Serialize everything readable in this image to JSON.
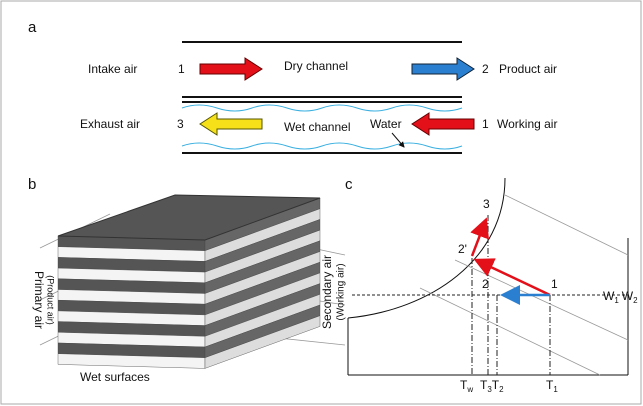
{
  "panel_a": {
    "label": "a",
    "intake": "Intake air",
    "intake_num": "1",
    "dry": "Dry channel",
    "product_num": "2",
    "product": "Product air",
    "exhaust": "Exhaust air",
    "exhaust_num": "3",
    "wet": "Wet channel",
    "water": "Water",
    "working_num": "1",
    "working": "Working air"
  },
  "panel_b": {
    "label": "b",
    "primary": "Primary air",
    "primary_sub": "(Product air)",
    "secondary": "Secondary air",
    "secondary_sub": "(Working air)",
    "wet_surfaces": "Wet surfaces"
  },
  "panel_c": {
    "label": "c",
    "point_3": "3",
    "point_2p": "2'",
    "point_2": "2",
    "point_1": "1",
    "w1": {
      "symbol": "W",
      "sub": "1"
    },
    "w2": {
      "symbol": "W",
      "sub": "2"
    },
    "tw": {
      "symbol": "T",
      "sub": "w"
    },
    "t3": {
      "symbol": "T",
      "sub": "3"
    },
    "t2": {
      "symbol": "T",
      "sub": "2"
    },
    "t1": {
      "symbol": "T",
      "sub": "1"
    }
  }
}
